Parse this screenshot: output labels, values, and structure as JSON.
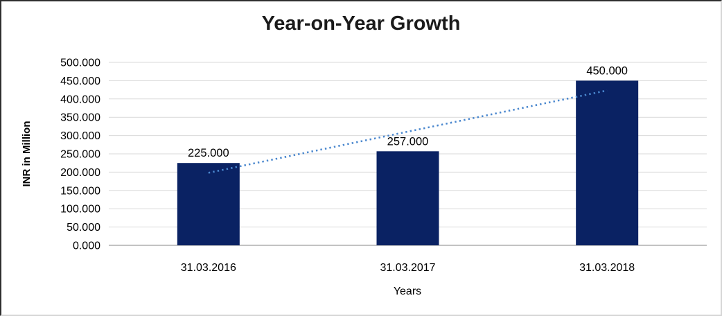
{
  "chart_data": {
    "type": "bar",
    "title": "Year-on-Year Growth",
    "xlabel": "Years",
    "ylabel": "INR in Million",
    "categories": [
      "31.03.2016",
      "31.03.2017",
      "31.03.2018"
    ],
    "values": [
      225,
      257,
      450
    ],
    "value_labels": [
      "225.000",
      "257.000",
      "450.000"
    ],
    "ylim": [
      0,
      500
    ],
    "y_ticks": [
      {
        "value": 0,
        "label": "0.000"
      },
      {
        "value": 50,
        "label": "50.000"
      },
      {
        "value": 100,
        "label": "100.000"
      },
      {
        "value": 150,
        "label": "150.000"
      },
      {
        "value": 200,
        "label": "200.000"
      },
      {
        "value": 250,
        "label": "250.000"
      },
      {
        "value": 300,
        "label": "300.000"
      },
      {
        "value": 350,
        "label": "350.000"
      },
      {
        "value": 400,
        "label": "400.000"
      },
      {
        "value": 450,
        "label": "450.000"
      },
      {
        "value": 500,
        "label": "500.000"
      }
    ],
    "grid": true,
    "legend": "none",
    "grid_color": "#d9d9d9",
    "axis_line_color": "#9e9e9e",
    "text_color": "#000000",
    "bar_color": "#0a2263",
    "trendline": {
      "style": "dotted",
      "color": "#4a87ce"
    }
  }
}
